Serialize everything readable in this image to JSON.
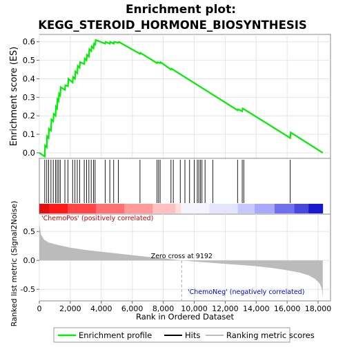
{
  "chart_data": {
    "type": "line",
    "title_line1": "Enrichment plot:",
    "title_line2": "KEGG_STEROID_HORMONE_BIOSYNTHESIS",
    "es_panel": {
      "ylabel": "Enrichment score (ES)",
      "ylim": [
        -0.03,
        0.64
      ],
      "yticks": [
        0.0,
        0.1,
        0.2,
        0.3,
        0.4,
        0.5,
        0.6
      ],
      "ytick_labels": [
        "0.0",
        "0.1",
        "0.2",
        "0.3",
        "0.4",
        "0.5",
        "0.6"
      ],
      "line_color": "#00ee00",
      "series": {
        "name": "Enrichment profile",
        "x": [
          0,
          350,
          370,
          480,
          500,
          600,
          620,
          750,
          780,
          900,
          930,
          1050,
          1070,
          1150,
          1170,
          1250,
          1270,
          1350,
          1380,
          1650,
          1680,
          1850,
          1880,
          2150,
          2180,
          2300,
          2330,
          2450,
          2480,
          2600,
          2630,
          2900,
          2930,
          3050,
          3080,
          3200,
          3230,
          3350,
          3380,
          3500,
          3530,
          3600,
          3640,
          4250,
          4280,
          4550,
          4580,
          4800,
          4830,
          5100,
          5130,
          6500,
          6530,
          7600,
          7630,
          7800,
          7830,
          8500,
          8530,
          12800,
          12830,
          13100,
          13130,
          16200,
          16230,
          18300
        ],
        "y": [
          0.0,
          -0.02,
          0.04,
          0.03,
          0.09,
          0.08,
          0.13,
          0.12,
          0.18,
          0.17,
          0.21,
          0.2,
          0.25,
          0.24,
          0.29,
          0.28,
          0.32,
          0.31,
          0.355,
          0.34,
          0.365,
          0.36,
          0.4,
          0.38,
          0.41,
          0.4,
          0.44,
          0.43,
          0.47,
          0.46,
          0.49,
          0.48,
          0.51,
          0.5,
          0.53,
          0.52,
          0.56,
          0.55,
          0.575,
          0.565,
          0.59,
          0.585,
          0.61,
          0.59,
          0.6,
          0.59,
          0.6,
          0.59,
          0.6,
          0.595,
          0.6,
          0.535,
          0.54,
          0.485,
          0.49,
          0.485,
          0.49,
          0.45,
          0.455,
          0.23,
          0.235,
          0.225,
          0.24,
          0.08,
          0.11,
          0.0
        ]
      }
    },
    "hits": [
      350,
      480,
      600,
      750,
      900,
      1050,
      1150,
      1250,
      1350,
      1650,
      1850,
      2150,
      2300,
      2450,
      2600,
      2900,
      3050,
      3200,
      3350,
      3500,
      3600,
      4250,
      4550,
      4800,
      5100,
      6500,
      7600,
      7700,
      7800,
      8500,
      8650,
      9100,
      9400,
      9700,
      10000,
      10200,
      10300,
      10400,
      10500,
      10700,
      11200,
      12800,
      13100,
      13200,
      16200
    ],
    "ranking_panel": {
      "ylabel": "Ranked list metric (Signal2Noise)",
      "xlabel": "Rank in Ordered Dataset",
      "xlim": [
        0,
        18800
      ],
      "xticks": [
        0,
        2000,
        4000,
        6000,
        8000,
        10000,
        12000,
        14000,
        16000,
        18000
      ],
      "xtick_labels": [
        "0",
        "2,000",
        "4,000",
        "6,000",
        "8,000",
        "10,000",
        "12,000",
        "14,000",
        "16,000",
        "18,000"
      ],
      "ylim": [
        -0.7,
        0.8
      ],
      "yticks": [
        -0.5,
        0.0,
        0.5
      ],
      "ytick_labels": [
        "-0.5",
        "0.0",
        "0.5"
      ],
      "zero_cross_rank": 9192,
      "zero_cross_label": "Zero cross at 9192",
      "pos_label": "'ChemoPos' (positively correlated)",
      "neg_label": "'ChemoNeg' (negatively correlated)",
      "metric_x": [
        0,
        100,
        300,
        600,
        1000,
        1500,
        2000,
        3000,
        4000,
        5000,
        6000,
        7000,
        8000,
        9192,
        10000,
        11000,
        12000,
        13000,
        14000,
        15000,
        16000,
        16800,
        17400,
        17800,
        18100,
        18250,
        18300
      ],
      "metric_y": [
        0.65,
        0.45,
        0.36,
        0.31,
        0.28,
        0.25,
        0.22,
        0.18,
        0.15,
        0.12,
        0.09,
        0.06,
        0.035,
        0.0,
        -0.02,
        -0.04,
        -0.06,
        -0.08,
        -0.1,
        -0.13,
        -0.17,
        -0.21,
        -0.26,
        -0.32,
        -0.4,
        -0.5,
        -0.65
      ]
    },
    "legend": {
      "items": [
        {
          "label": "Enrichment profile",
          "color": "#00ee00"
        },
        {
          "label": "Hits",
          "color": "#000000"
        },
        {
          "label": "Ranking metric scores",
          "color": "#bbbbbb"
        }
      ]
    },
    "colors": {
      "profile": "#00ee00",
      "hit": "#000000",
      "metric_fill": "#bbbbbb",
      "pos_text": "#cc0000",
      "neg_text": "#0000cc",
      "zero_line": "#aaaaaa"
    }
  }
}
